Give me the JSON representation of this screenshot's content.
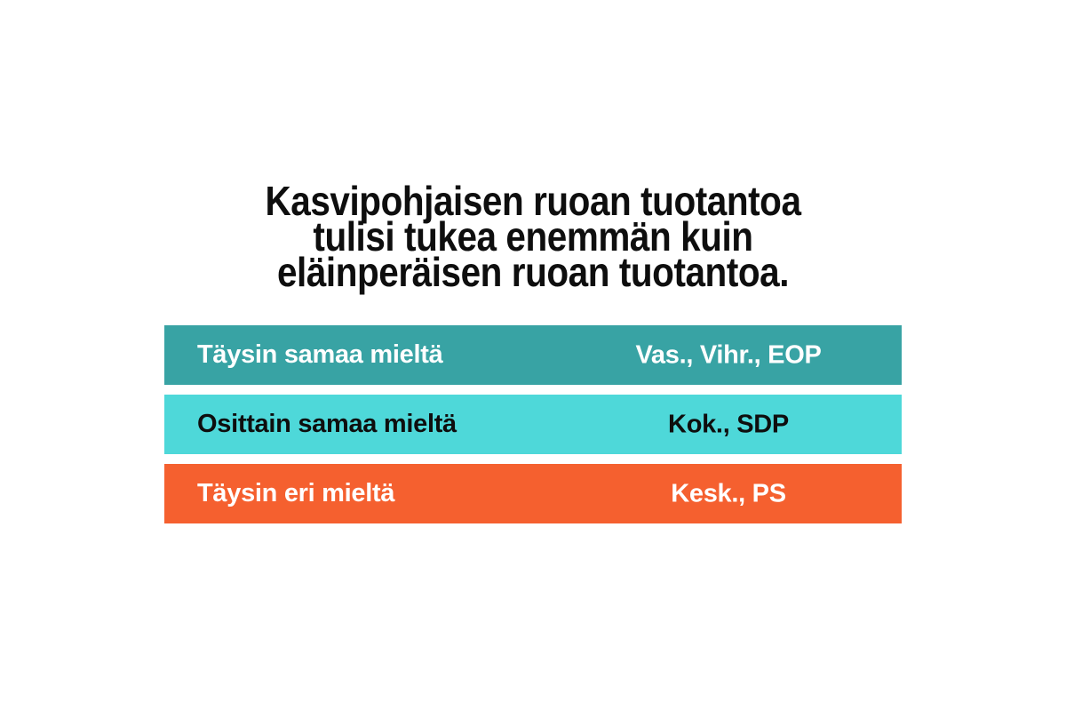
{
  "page": {
    "background_color": "#FFFFFF"
  },
  "title": {
    "lines": [
      "Kasvipohjaisen ruoan tuotantoa",
      "tulisi tukea enemmän kuin",
      "eläinperäisen ruoan tuotantoa."
    ],
    "full_text": "Kasvipohjaisen ruoan tuotantoa tulisi tukea enemmän kuin eläinperäisen ruoan tuotantoa.",
    "color": "#0E0E0E"
  },
  "chart_data": {
    "type": "table",
    "title": "Kasvipohjaisen ruoan tuotantoa tulisi tukea enemmän kuin eläinperäisen ruoan tuotantoa.",
    "legend": false,
    "rows": [
      {
        "label": "Täysin samaa mieltä",
        "parties": "Vas., Vihr., EOP",
        "bar_color": "#38A3A4",
        "text_color": "#FFFFFF"
      },
      {
        "label": "Osittain samaa mieltä",
        "parties": "Kok., SDP",
        "bar_color": "#4ED8D9",
        "text_color": "#0E0E0E"
      },
      {
        "label": "Täysin eri mieltä",
        "parties": "Kesk., PS",
        "bar_color": "#F5602F",
        "text_color": "#FFFFFF"
      }
    ]
  }
}
